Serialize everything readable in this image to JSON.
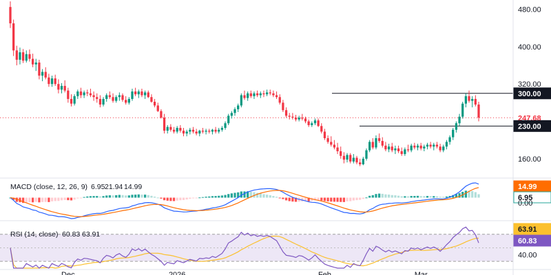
{
  "chart_data": {
    "type": "candlestick",
    "price_panel": {
      "y_ticks": [
        "480.00",
        "400.00",
        "320.00",
        "160.00"
      ],
      "ylim": [
        120,
        500
      ],
      "candles": [
        [
          485,
          497,
          440,
          450
        ],
        [
          450,
          458,
          380,
          392
        ],
        [
          392,
          402,
          360,
          372
        ],
        [
          372,
          398,
          362,
          388
        ],
        [
          388,
          395,
          365,
          370
        ],
        [
          370,
          392,
          366,
          384
        ],
        [
          384,
          394,
          368,
          374
        ],
        [
          374,
          385,
          356,
          362
        ],
        [
          362,
          374,
          348,
          366
        ],
        [
          366,
          372,
          330,
          338
        ],
        [
          338,
          352,
          326,
          346
        ],
        [
          346,
          356,
          330,
          334
        ],
        [
          334,
          342,
          314,
          320
        ],
        [
          320,
          338,
          314,
          332
        ],
        [
          332,
          340,
          316,
          320
        ],
        [
          320,
          330,
          300,
          308
        ],
        [
          308,
          322,
          300,
          316
        ],
        [
          316,
          328,
          302,
          306
        ],
        [
          306,
          312,
          280,
          288
        ],
        [
          288,
          298,
          272,
          278
        ],
        [
          278,
          298,
          274,
          294
        ],
        [
          294,
          308,
          288,
          304
        ],
        [
          304,
          312,
          290,
          296
        ],
        [
          296,
          306,
          290,
          302
        ],
        [
          302,
          308,
          294,
          300
        ],
        [
          300,
          310,
          292,
          296
        ],
        [
          296,
          304,
          284,
          292
        ],
        [
          292,
          300,
          280,
          288
        ],
        [
          288,
          296,
          270,
          276
        ],
        [
          276,
          292,
          272,
          288
        ],
        [
          288,
          300,
          282,
          296
        ],
        [
          296,
          304,
          288,
          292
        ],
        [
          292,
          300,
          280,
          284
        ],
        [
          284,
          296,
          280,
          292
        ],
        [
          292,
          302,
          284,
          296
        ],
        [
          296,
          300,
          282,
          286
        ],
        [
          286,
          294,
          276,
          280
        ],
        [
          280,
          292,
          276,
          288
        ],
        [
          288,
          310,
          284,
          304
        ],
        [
          304,
          312,
          294,
          298
        ],
        [
          298,
          308,
          290,
          304
        ],
        [
          304,
          310,
          292,
          296
        ],
        [
          296,
          306,
          288,
          302
        ],
        [
          302,
          306,
          290,
          292
        ],
        [
          292,
          298,
          280,
          282
        ],
        [
          282,
          288,
          270,
          274
        ],
        [
          274,
          280,
          260,
          262
        ],
        [
          262,
          266,
          246,
          248
        ],
        [
          248,
          256,
          214,
          220
        ],
        [
          220,
          232,
          214,
          228
        ],
        [
          228,
          234,
          218,
          222
        ],
        [
          222,
          228,
          214,
          218
        ],
        [
          218,
          230,
          214,
          226
        ],
        [
          226,
          232,
          216,
          220
        ],
        [
          220,
          226,
          208,
          214
        ],
        [
          214,
          222,
          208,
          218
        ],
        [
          218,
          226,
          212,
          222
        ],
        [
          222,
          228,
          214,
          218
        ],
        [
          218,
          224,
          210,
          214
        ],
        [
          214,
          222,
          208,
          220
        ],
        [
          220,
          226,
          214,
          218
        ],
        [
          218,
          224,
          212,
          220
        ],
        [
          220,
          224,
          214,
          218
        ],
        [
          218,
          224,
          212,
          222
        ],
        [
          222,
          228,
          214,
          218
        ],
        [
          218,
          226,
          214,
          222
        ],
        [
          222,
          230,
          218,
          226
        ],
        [
          226,
          240,
          222,
          236
        ],
        [
          236,
          256,
          232,
          252
        ],
        [
          252,
          262,
          246,
          258
        ],
        [
          258,
          270,
          252,
          266
        ],
        [
          266,
          278,
          260,
          274
        ],
        [
          274,
          300,
          270,
          296
        ],
        [
          296,
          306,
          286,
          290
        ],
        [
          290,
          304,
          284,
          300
        ],
        [
          300,
          306,
          290,
          294
        ],
        [
          294,
          304,
          288,
          300
        ],
        [
          300,
          306,
          292,
          296
        ],
        [
          296,
          304,
          290,
          300
        ],
        [
          300,
          306,
          292,
          298
        ],
        [
          298,
          308,
          294,
          302
        ],
        [
          302,
          308,
          296,
          300
        ],
        [
          300,
          306,
          292,
          296
        ],
        [
          296,
          304,
          288,
          292
        ],
        [
          292,
          298,
          276,
          280
        ],
        [
          280,
          286,
          260,
          264
        ],
        [
          264,
          270,
          248,
          252
        ],
        [
          252,
          258,
          244,
          250
        ],
        [
          250,
          258,
          244,
          248
        ],
        [
          248,
          254,
          240,
          244
        ],
        [
          244,
          252,
          240,
          248
        ],
        [
          248,
          256,
          242,
          246
        ],
        [
          246,
          250,
          236,
          240
        ],
        [
          240,
          244,
          228,
          232
        ],
        [
          232,
          240,
          228,
          236
        ],
        [
          236,
          246,
          232,
          242
        ],
        [
          242,
          246,
          228,
          230
        ],
        [
          230,
          236,
          214,
          218
        ],
        [
          218,
          224,
          200,
          204
        ],
        [
          204,
          210,
          192,
          196
        ],
        [
          196,
          208,
          186,
          190
        ],
        [
          190,
          200,
          180,
          184
        ],
        [
          184,
          194,
          170,
          176
        ],
        [
          176,
          186,
          160,
          166
        ],
        [
          166,
          174,
          150,
          158
        ],
        [
          158,
          172,
          152,
          168
        ],
        [
          168,
          172,
          150,
          154
        ],
        [
          154,
          170,
          150,
          162
        ],
        [
          162,
          166,
          148,
          152
        ],
        [
          152,
          160,
          144,
          148
        ],
        [
          148,
          164,
          146,
          160
        ],
        [
          160,
          182,
          156,
          178
        ],
        [
          178,
          200,
          174,
          196
        ],
        [
          196,
          204,
          180,
          184
        ],
        [
          184,
          210,
          180,
          204
        ],
        [
          204,
          214,
          194,
          198
        ],
        [
          198,
          206,
          184,
          188
        ],
        [
          188,
          196,
          176,
          180
        ],
        [
          180,
          192,
          174,
          186
        ],
        [
          186,
          194,
          174,
          178
        ],
        [
          178,
          188,
          170,
          182
        ],
        [
          182,
          188,
          172,
          176
        ],
        [
          176,
          184,
          166,
          170
        ],
        [
          170,
          184,
          166,
          180
        ],
        [
          180,
          190,
          174,
          178
        ],
        [
          178,
          192,
          174,
          188
        ],
        [
          188,
          194,
          180,
          184
        ],
        [
          184,
          192,
          178,
          188
        ],
        [
          188,
          194,
          178,
          182
        ],
        [
          182,
          190,
          176,
          186
        ],
        [
          186,
          194,
          180,
          190
        ],
        [
          190,
          196,
          182,
          186
        ],
        [
          186,
          194,
          178,
          190
        ],
        [
          190,
          196,
          182,
          186
        ],
        [
          186,
          192,
          174,
          178
        ],
        [
          178,
          190,
          174,
          186
        ],
        [
          186,
          200,
          180,
          196
        ],
        [
          196,
          210,
          190,
          206
        ],
        [
          206,
          226,
          200,
          222
        ],
        [
          222,
          240,
          216,
          236
        ],
        [
          236,
          256,
          230,
          250
        ],
        [
          250,
          282,
          246,
          278
        ],
        [
          278,
          300,
          270,
          294
        ],
        [
          294,
          306,
          280,
          284
        ],
        [
          284,
          294,
          270,
          288
        ],
        [
          288,
          296,
          272,
          276
        ],
        [
          276,
          282,
          240,
          248
        ]
      ],
      "resistance_lines": [
        300.0,
        230.0
      ],
      "badges": [
        {
          "value": "300.00",
          "color": "#131722",
          "text_color": "#ffffff"
        },
        {
          "value": "247.68",
          "color": "#ffffff",
          "text_color": "#f23645"
        },
        {
          "value": "230.00",
          "color": "#131722",
          "text_color": "#ffffff"
        }
      ],
      "last_price": 247.68,
      "up_color": "#089981",
      "down_color": "#f23645"
    },
    "macd_panel": {
      "legend": {
        "label": "MACD (close, 12, 26, 9)",
        "v1": "6.95",
        "v2": "21.94",
        "v3": "14.99"
      },
      "colors": {
        "macd": "#2962ff",
        "signal": "#ff6d00",
        "v1": "#26a69a",
        "v2": "#2962ff",
        "v3": "#ff6d00"
      },
      "badges": [
        {
          "value": "14.99",
          "color": "#ff6d00",
          "text_color": "#ffffff"
        },
        {
          "value": "6.95",
          "color": "#ffffff",
          "text_color": "#131722",
          "border": "#26a69a"
        }
      ],
      "partial_tick_labels": [
        "",
        "0.00"
      ]
    },
    "rsi_panel": {
      "legend": {
        "label": "RSI (14, close)",
        "rsi": "60.83",
        "ma": "63.91"
      },
      "colors": {
        "rsi": "#7e57c2",
        "ma": "#fbc02d",
        "band": "#ede7f6"
      },
      "upper": 70,
      "lower": 30,
      "y_ticks": [
        "40.00"
      ],
      "badges": [
        {
          "value": "63.91",
          "color": "#fbc02d",
          "text_color": "#131722"
        },
        {
          "value": "60.83",
          "color": "#7e57c2",
          "text_color": "#ffffff"
        }
      ]
    },
    "x_ticks": [
      {
        "label": "Dec",
        "bar": 18
      },
      {
        "label": "2026",
        "bar": 52
      },
      {
        "label": "Feb",
        "bar": 98
      },
      {
        "label": "Mar",
        "bar": 128
      }
    ]
  }
}
